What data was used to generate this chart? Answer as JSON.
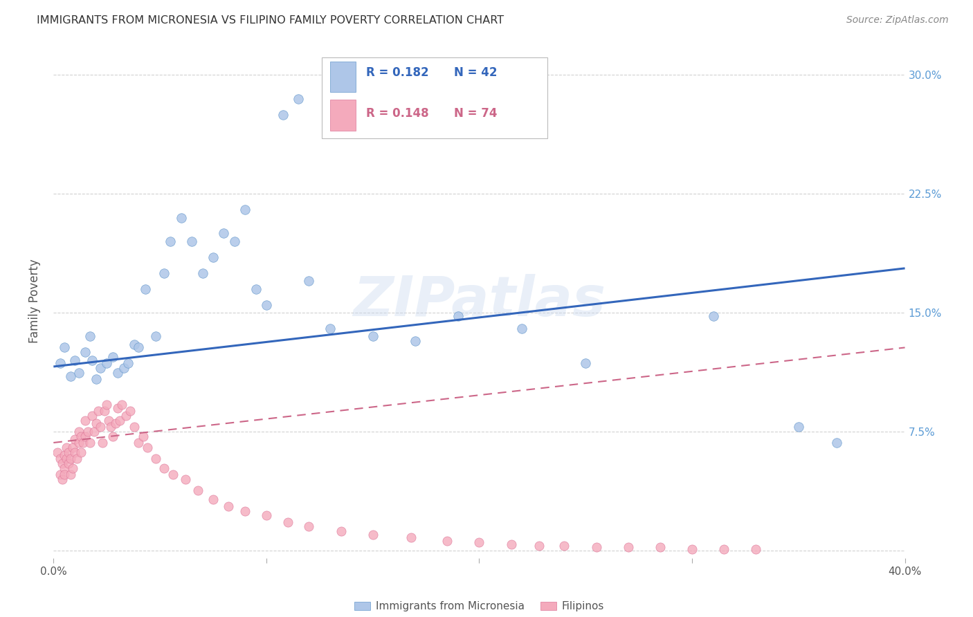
{
  "title": "IMMIGRANTS FROM MICRONESIA VS FILIPINO FAMILY POVERTY CORRELATION CHART",
  "source": "Source: ZipAtlas.com",
  "ylabel": "Family Poverty",
  "xlim": [
    0.0,
    0.4
  ],
  "ylim": [
    -0.005,
    0.32
  ],
  "watermark": "ZIPatlas",
  "legend_r1": "R = 0.182",
  "legend_n1": "N = 42",
  "legend_r2": "R = 0.148",
  "legend_n2": "N = 74",
  "series1_color": "#aec6e8",
  "series2_color": "#f4aabc",
  "series1_edge": "#6699cc",
  "series2_edge": "#dd7799",
  "line1_color": "#3366bb",
  "line2_color": "#cc6688",
  "grid_color": "#cccccc",
  "right_axis_color": "#5b9bd5",
  "series1_label": "Immigrants from Micronesia",
  "series2_label": "Filipinos",
  "blue_x": [
    0.003,
    0.005,
    0.008,
    0.01,
    0.012,
    0.015,
    0.017,
    0.018,
    0.02,
    0.022,
    0.025,
    0.028,
    0.03,
    0.033,
    0.035,
    0.038,
    0.04,
    0.043,
    0.048,
    0.052,
    0.055,
    0.06,
    0.065,
    0.07,
    0.075,
    0.08,
    0.085,
    0.09,
    0.095,
    0.1,
    0.108,
    0.115,
    0.12,
    0.13,
    0.15,
    0.17,
    0.19,
    0.22,
    0.25,
    0.31,
    0.35,
    0.368
  ],
  "blue_y": [
    0.118,
    0.128,
    0.11,
    0.12,
    0.112,
    0.125,
    0.135,
    0.12,
    0.108,
    0.115,
    0.118,
    0.122,
    0.112,
    0.115,
    0.118,
    0.13,
    0.128,
    0.165,
    0.135,
    0.175,
    0.195,
    0.21,
    0.195,
    0.175,
    0.185,
    0.2,
    0.195,
    0.215,
    0.165,
    0.155,
    0.275,
    0.285,
    0.17,
    0.14,
    0.135,
    0.132,
    0.148,
    0.14,
    0.118,
    0.148,
    0.078,
    0.068
  ],
  "pink_x": [
    0.002,
    0.003,
    0.003,
    0.004,
    0.004,
    0.005,
    0.005,
    0.005,
    0.006,
    0.006,
    0.007,
    0.007,
    0.008,
    0.008,
    0.009,
    0.009,
    0.01,
    0.01,
    0.011,
    0.012,
    0.012,
    0.013,
    0.013,
    0.014,
    0.015,
    0.015,
    0.016,
    0.017,
    0.018,
    0.019,
    0.02,
    0.021,
    0.022,
    0.023,
    0.024,
    0.025,
    0.026,
    0.027,
    0.028,
    0.029,
    0.03,
    0.031,
    0.032,
    0.034,
    0.036,
    0.038,
    0.04,
    0.042,
    0.044,
    0.048,
    0.052,
    0.056,
    0.062,
    0.068,
    0.075,
    0.082,
    0.09,
    0.1,
    0.11,
    0.12,
    0.135,
    0.15,
    0.168,
    0.185,
    0.2,
    0.215,
    0.228,
    0.24,
    0.255,
    0.27,
    0.285,
    0.3,
    0.315,
    0.33
  ],
  "pink_y": [
    0.062,
    0.058,
    0.048,
    0.045,
    0.055,
    0.052,
    0.06,
    0.048,
    0.058,
    0.065,
    0.055,
    0.062,
    0.048,
    0.058,
    0.052,
    0.065,
    0.062,
    0.07,
    0.058,
    0.068,
    0.075,
    0.062,
    0.072,
    0.068,
    0.072,
    0.082,
    0.075,
    0.068,
    0.085,
    0.075,
    0.08,
    0.088,
    0.078,
    0.068,
    0.088,
    0.092,
    0.082,
    0.078,
    0.072,
    0.08,
    0.09,
    0.082,
    0.092,
    0.085,
    0.088,
    0.078,
    0.068,
    0.072,
    0.065,
    0.058,
    0.052,
    0.048,
    0.045,
    0.038,
    0.032,
    0.028,
    0.025,
    0.022,
    0.018,
    0.015,
    0.012,
    0.01,
    0.008,
    0.006,
    0.005,
    0.004,
    0.003,
    0.003,
    0.002,
    0.002,
    0.002,
    0.001,
    0.001,
    0.001
  ],
  "blue_line_x0": 0.0,
  "blue_line_y0": 0.116,
  "blue_line_x1": 0.4,
  "blue_line_y1": 0.178,
  "pink_line_x0": 0.0,
  "pink_line_y0": 0.068,
  "pink_line_x1": 0.4,
  "pink_line_y1": 0.128
}
